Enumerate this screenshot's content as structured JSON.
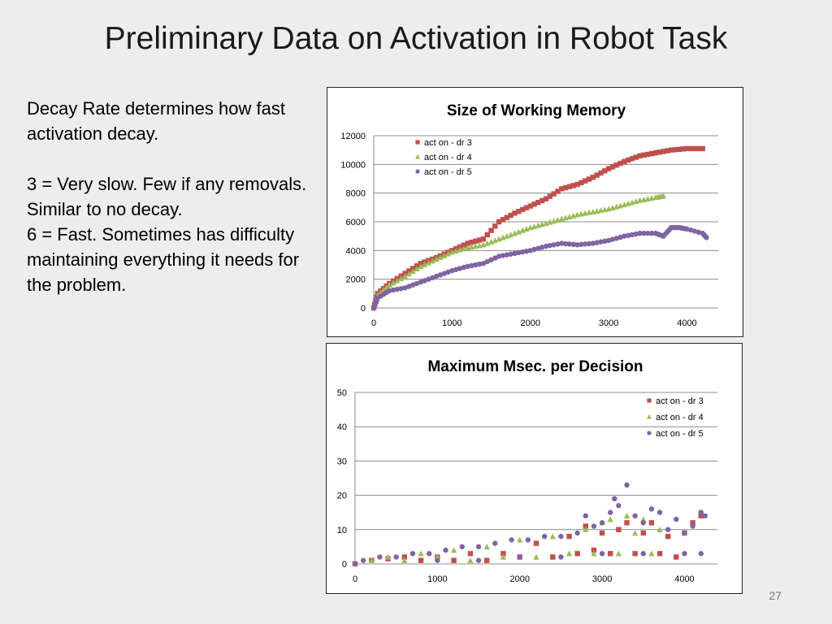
{
  "slide": {
    "title": "Preliminary Data on Activation in Robot Task",
    "text": {
      "p1": "Decay Rate determines how fast activation decay.",
      "p2": "3 = Very slow. Few if any removals. Similar to no decay.",
      "p3": "6 = Fast. Sometimes has difficulty maintaining everything it needs for the problem."
    },
    "page_number": "27"
  },
  "colors": {
    "dr3": "#c0504d",
    "dr4": "#9bbb59",
    "dr5": "#8064a2",
    "grid": "#8c8c8c"
  },
  "chart_data": [
    {
      "type": "scatter",
      "title": "Size of Working Memory",
      "xlim": [
        0,
        4400
      ],
      "ylim": [
        0,
        12000
      ],
      "x_ticks": [
        0,
        1000,
        2000,
        3000,
        4000
      ],
      "y_ticks": [
        0,
        2000,
        4000,
        6000,
        8000,
        10000,
        12000
      ],
      "grid": "horizontal",
      "legend_position": "top-left inside plot",
      "series": [
        {
          "name": "act on - dr 3",
          "marker": "square",
          "color": "#c0504d",
          "points": [
            [
              0,
              0
            ],
            [
              50,
              1000
            ],
            [
              200,
              1700
            ],
            [
              400,
              2400
            ],
            [
              600,
              3100
            ],
            [
              800,
              3500
            ],
            [
              1000,
              4000
            ],
            [
              1200,
              4500
            ],
            [
              1400,
              4800
            ],
            [
              1600,
              6000
            ],
            [
              1800,
              6600
            ],
            [
              2000,
              7100
            ],
            [
              2200,
              7600
            ],
            [
              2400,
              8300
            ],
            [
              2600,
              8600
            ],
            [
              2800,
              9100
            ],
            [
              3000,
              9700
            ],
            [
              3200,
              10200
            ],
            [
              3400,
              10600
            ],
            [
              3600,
              10800
            ],
            [
              3800,
              11000
            ],
            [
              4000,
              11100
            ],
            [
              4200,
              11100
            ]
          ]
        },
        {
          "name": "act on - dr 4",
          "marker": "triangle",
          "color": "#9bbb59",
          "points": [
            [
              0,
              0
            ],
            [
              50,
              900
            ],
            [
              200,
              1600
            ],
            [
              400,
              2200
            ],
            [
              600,
              2900
            ],
            [
              800,
              3400
            ],
            [
              1000,
              3900
            ],
            [
              1200,
              4200
            ],
            [
              1400,
              4400
            ],
            [
              1600,
              4800
            ],
            [
              1800,
              5200
            ],
            [
              2000,
              5600
            ],
            [
              2200,
              5900
            ],
            [
              2400,
              6200
            ],
            [
              2600,
              6500
            ],
            [
              2800,
              6700
            ],
            [
              3000,
              6900
            ],
            [
              3200,
              7200
            ],
            [
              3400,
              7500
            ],
            [
              3600,
              7700
            ],
            [
              3700,
              7800
            ]
          ]
        },
        {
          "name": "act on - dr 5",
          "marker": "circle",
          "color": "#8064a2",
          "points": [
            [
              0,
              0
            ],
            [
              50,
              700
            ],
            [
              200,
              1200
            ],
            [
              400,
              1400
            ],
            [
              600,
              1800
            ],
            [
              800,
              2200
            ],
            [
              1000,
              2600
            ],
            [
              1200,
              2900
            ],
            [
              1400,
              3100
            ],
            [
              1600,
              3600
            ],
            [
              1800,
              3800
            ],
            [
              2000,
              4000
            ],
            [
              2200,
              4300
            ],
            [
              2400,
              4500
            ],
            [
              2600,
              4400
            ],
            [
              2800,
              4500
            ],
            [
              3000,
              4700
            ],
            [
              3200,
              5000
            ],
            [
              3400,
              5200
            ],
            [
              3600,
              5200
            ],
            [
              3700,
              5000
            ],
            [
              3800,
              5600
            ],
            [
              3900,
              5600
            ],
            [
              4000,
              5500
            ],
            [
              4200,
              5200
            ],
            [
              4250,
              4900
            ]
          ]
        }
      ]
    },
    {
      "type": "scatter",
      "title": "Maximum Msec. per Decision",
      "xlim": [
        0,
        4400
      ],
      "ylim": [
        0,
        50
      ],
      "x_ticks": [
        0,
        1000,
        2000,
        3000,
        4000
      ],
      "y_ticks": [
        0,
        10,
        20,
        30,
        40,
        50
      ],
      "grid": "horizontal",
      "legend_position": "top-right inside plot",
      "series": [
        {
          "name": "act on - dr 3",
          "marker": "square",
          "color": "#c0504d",
          "points": [
            [
              0,
              0
            ],
            [
              200,
              1
            ],
            [
              400,
              1.5
            ],
            [
              600,
              2
            ],
            [
              800,
              1
            ],
            [
              1000,
              2
            ],
            [
              1200,
              1
            ],
            [
              1400,
              3
            ],
            [
              1600,
              1
            ],
            [
              1800,
              3
            ],
            [
              2000,
              2
            ],
            [
              2200,
              6
            ],
            [
              2400,
              2
            ],
            [
              2600,
              8
            ],
            [
              2700,
              3
            ],
            [
              2800,
              11
            ],
            [
              2900,
              4
            ],
            [
              3000,
              9
            ],
            [
              3100,
              3
            ],
            [
              3200,
              10
            ],
            [
              3300,
              12
            ],
            [
              3400,
              3
            ],
            [
              3500,
              9
            ],
            [
              3600,
              12
            ],
            [
              3700,
              3
            ],
            [
              3800,
              8
            ],
            [
              3900,
              2
            ],
            [
              4000,
              9
            ],
            [
              4100,
              12
            ],
            [
              4200,
              14
            ]
          ]
        },
        {
          "name": "act on - dr 4",
          "marker": "triangle",
          "color": "#9bbb59",
          "points": [
            [
              0,
              0
            ],
            [
              200,
              1
            ],
            [
              400,
              2
            ],
            [
              600,
              1
            ],
            [
              800,
              3
            ],
            [
              1000,
              2
            ],
            [
              1200,
              4
            ],
            [
              1400,
              1
            ],
            [
              1600,
              5
            ],
            [
              1800,
              2
            ],
            [
              2000,
              7
            ],
            [
              2200,
              2
            ],
            [
              2400,
              8
            ],
            [
              2600,
              3
            ],
            [
              2800,
              10
            ],
            [
              2900,
              3
            ],
            [
              3000,
              12
            ],
            [
              3100,
              13
            ],
            [
              3200,
              3
            ],
            [
              3300,
              14
            ],
            [
              3400,
              9
            ],
            [
              3500,
              13
            ],
            [
              3600,
              3
            ],
            [
              3700,
              10
            ]
          ]
        },
        {
          "name": "act on - dr 5",
          "marker": "circle",
          "color": "#8064a2",
          "points": [
            [
              0,
              0
            ],
            [
              100,
              1
            ],
            [
              300,
              2
            ],
            [
              500,
              2
            ],
            [
              700,
              3
            ],
            [
              900,
              3
            ],
            [
              1100,
              4
            ],
            [
              1300,
              5
            ],
            [
              1500,
              5
            ],
            [
              1700,
              6
            ],
            [
              1900,
              7
            ],
            [
              2100,
              7
            ],
            [
              2300,
              8
            ],
            [
              2500,
              8
            ],
            [
              2700,
              9
            ],
            [
              2800,
              14
            ],
            [
              2900,
              11
            ],
            [
              3000,
              12
            ],
            [
              3100,
              15
            ],
            [
              3150,
              19
            ],
            [
              3200,
              17
            ],
            [
              3300,
              23
            ],
            [
              3400,
              14
            ],
            [
              3500,
              12
            ],
            [
              3600,
              16
            ],
            [
              3700,
              15
            ],
            [
              3800,
              10
            ],
            [
              3900,
              13
            ],
            [
              4000,
              9
            ],
            [
              4100,
              11
            ],
            [
              4200,
              15
            ],
            [
              4250,
              14
            ],
            [
              1000,
              1
            ],
            [
              1500,
              1
            ],
            [
              2000,
              2
            ],
            [
              2500,
              2
            ],
            [
              3000,
              3
            ],
            [
              3500,
              3
            ],
            [
              4000,
              3
            ],
            [
              4200,
              3
            ]
          ]
        }
      ]
    }
  ]
}
